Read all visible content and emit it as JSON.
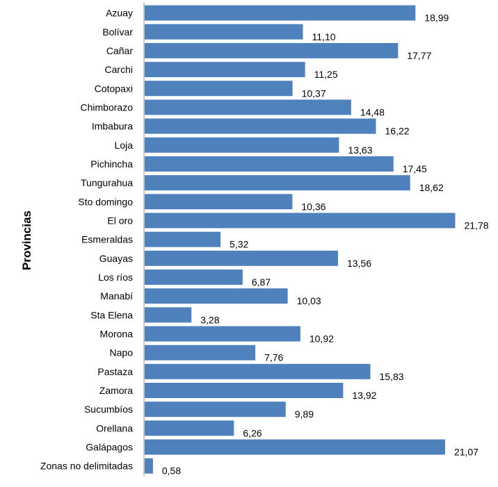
{
  "chart_data": {
    "type": "bar",
    "orientation": "horizontal",
    "ylabel": "Provincias",
    "xlabel": "",
    "title": "",
    "bar_color": "#4F81BD",
    "xlim": [
      0,
      22
    ],
    "grid": false,
    "legend": "none",
    "categories": [
      "Azuay",
      "Bolívar",
      "Cañar",
      "Carchi",
      "Cotopaxi",
      "Chimborazo",
      "Imbabura",
      "Loja",
      "Pichincha",
      "Tungurahua",
      "Sto domingo",
      "El oro",
      "Esmeraldas",
      "Guayas",
      "Los ríos",
      "Manabí",
      "Sta Elena",
      "Morona",
      "Napo",
      "Pastaza",
      "Zamora",
      "Sucumbíos",
      "Orellana",
      "Galápagos",
      "Zonas  no delimitadas"
    ],
    "values": [
      18.99,
      11.1,
      17.77,
      11.25,
      10.37,
      14.48,
      16.22,
      13.63,
      17.45,
      18.62,
      10.36,
      21.78,
      5.32,
      13.56,
      6.87,
      10.03,
      3.28,
      10.92,
      7.76,
      15.83,
      13.92,
      9.89,
      6.26,
      21.07,
      0.58
    ],
    "value_labels": [
      "18,99",
      "11,10",
      "17,77",
      "11,25",
      "10,37",
      "14,48",
      "16,22",
      "13,63",
      "17,45",
      "18,62",
      "10,36",
      "21,78",
      "5,32",
      "13,56",
      "6,87",
      "10,03",
      "3,28",
      "10,92",
      "7,76",
      "15,83",
      "13,92",
      "9,89",
      "6,26",
      "21,07",
      "0,58"
    ]
  }
}
